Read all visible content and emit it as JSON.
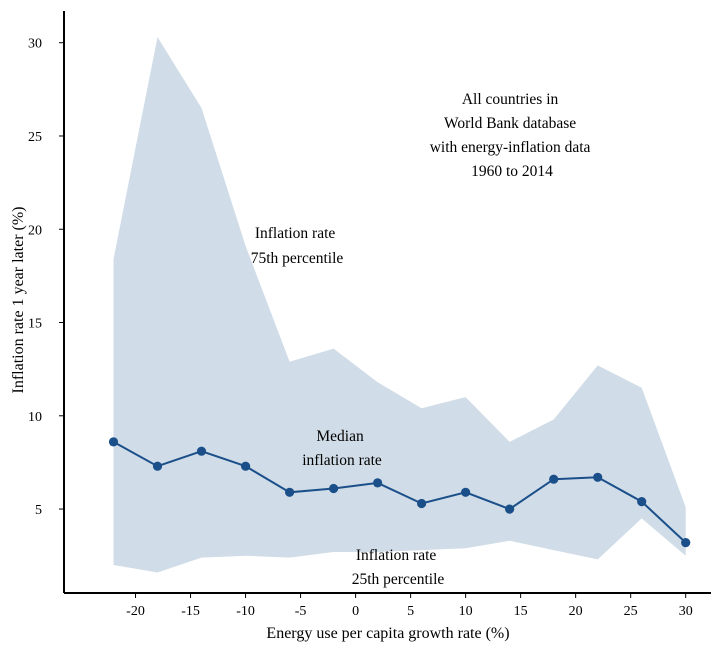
{
  "chart_data": {
    "type": "line",
    "title": "",
    "xlabel": "Energy use per capita growth rate (%)",
    "ylabel": "Inflation rate 1 year later (%)",
    "xlim": [
      -26.5,
      32.3
    ],
    "ylim": [
      0.5,
      31.7
    ],
    "xticks": [
      -20,
      -15,
      -10,
      -5,
      0,
      5,
      10,
      15,
      20,
      25,
      30
    ],
    "xtick_labels": [
      "-20",
      "-15",
      "-10",
      "-5",
      "0",
      "5",
      "10",
      "15",
      "20",
      "25",
      "30"
    ],
    "yticks": [
      5,
      10,
      15,
      20,
      25,
      30
    ],
    "ytick_labels": [
      "5",
      "10",
      "15",
      "20",
      "25",
      "30"
    ],
    "grid": false,
    "x": [
      -22,
      -18,
      -14,
      -10,
      -6,
      -2,
      2,
      6,
      10,
      14,
      18,
      22,
      26,
      30
    ],
    "series": [
      {
        "name": "Median inflation rate",
        "kind": "line-markers",
        "color": "#1a4f8a",
        "values": [
          8.6,
          7.3,
          8.1,
          7.3,
          5.9,
          6.1,
          6.4,
          5.3,
          5.9,
          5.0,
          6.6,
          6.7,
          5.4,
          3.2
        ]
      },
      {
        "name": "Inflation rate 75th percentile",
        "kind": "band-upper",
        "color": "#d0dce7",
        "values": [
          18.4,
          30.3,
          26.5,
          19.1,
          12.9,
          13.6,
          11.8,
          10.4,
          11.0,
          8.6,
          9.8,
          12.7,
          11.5,
          5.1
        ]
      },
      {
        "name": "Inflation rate 25th percentile",
        "kind": "band-lower",
        "color": "#d0dce7",
        "values": [
          2.0,
          1.6,
          2.4,
          2.5,
          2.4,
          2.7,
          2.7,
          2.8,
          2.9,
          3.3,
          2.8,
          2.3,
          4.5,
          2.5
        ]
      }
    ],
    "annotations": [
      {
        "name": "annotation-source",
        "lines": [
          "All countries in",
          "World Bank database",
          "with energy-inflation data",
          "1960 to 2014"
        ]
      },
      {
        "name": "annotation-75th-percentile",
        "lines": [
          "Inflation rate",
          "75th percentile"
        ]
      },
      {
        "name": "annotation-median",
        "lines": [
          "Median",
          "inflation rate"
        ]
      },
      {
        "name": "annotation-25th-percentile",
        "lines": [
          "Inflation rate",
          "25th percentile"
        ]
      }
    ]
  }
}
